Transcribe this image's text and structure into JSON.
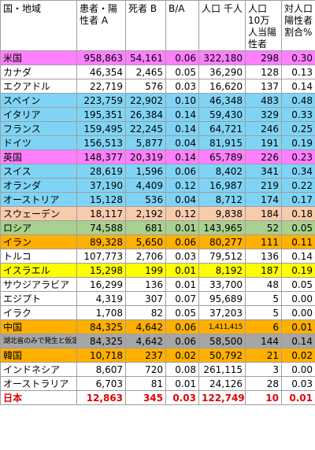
{
  "headers": [
    "国・地域",
    "患者・陽性者 A",
    "死者 B",
    "B/A",
    "人口 千人",
    "人口10万人当陽性者",
    "対人口陽性者割合%"
  ],
  "colors": {
    "magenta": "#ff80ff",
    "white": "#ffffff",
    "blue": "#7fd4f5",
    "peach": "#f9cbad",
    "green": "#a9d08e",
    "orange": "#ffb000",
    "yellow": "#ffff00",
    "gray": "#a6a6a6"
  },
  "rows": [
    {
      "name": "米国",
      "a": "958,863",
      "b": "54,161",
      "ba": "0.06",
      "pop": "322,180",
      "per100k": "298",
      "pct": "0.30",
      "bg": "#ff80ff"
    },
    {
      "name": "カナダ",
      "a": "46,354",
      "b": "2,465",
      "ba": "0.05",
      "pop": "36,290",
      "per100k": "128",
      "pct": "0.13",
      "bg": "#ffffff"
    },
    {
      "name": "エクアドル",
      "a": "22,719",
      "b": "576",
      "ba": "0.03",
      "pop": "16,620",
      "per100k": "137",
      "pct": "0.14",
      "bg": "#ffffff"
    },
    {
      "name": "スペイン",
      "a": "223,759",
      "b": "22,902",
      "ba": "0.10",
      "pop": "46,348",
      "per100k": "483",
      "pct": "0.48",
      "bg": "#7fd4f5"
    },
    {
      "name": "イタリア",
      "a": "195,351",
      "b": "26,384",
      "ba": "0.14",
      "pop": "59,430",
      "per100k": "329",
      "pct": "0.33",
      "bg": "#7fd4f5"
    },
    {
      "name": "フランス",
      "a": "159,495",
      "b": "22,245",
      "ba": "0.14",
      "pop": "64,721",
      "per100k": "246",
      "pct": "0.25",
      "bg": "#7fd4f5"
    },
    {
      "name": "ドイツ",
      "a": "156,513",
      "b": "5,877",
      "ba": "0.04",
      "pop": "81,915",
      "per100k": "191",
      "pct": "0.19",
      "bg": "#7fd4f5"
    },
    {
      "name": "英国",
      "a": "148,377",
      "b": "20,319",
      "ba": "0.14",
      "pop": "65,789",
      "per100k": "226",
      "pct": "0.23",
      "bg": "#ff80ff"
    },
    {
      "name": "スイス",
      "a": "28,619",
      "b": "1,596",
      "ba": "0.06",
      "pop": "8,402",
      "per100k": "341",
      "pct": "0.34",
      "bg": "#7fd4f5"
    },
    {
      "name": "オランダ",
      "a": "37,190",
      "b": "4,409",
      "ba": "0.12",
      "pop": "16,987",
      "per100k": "219",
      "pct": "0.22",
      "bg": "#7fd4f5"
    },
    {
      "name": "オーストリア",
      "a": "15,128",
      "b": "536",
      "ba": "0.04",
      "pop": "8,712",
      "per100k": "174",
      "pct": "0.17",
      "bg": "#7fd4f5"
    },
    {
      "name": "スウェーデン",
      "a": "18,117",
      "b": "2,192",
      "ba": "0.12",
      "pop": "9,838",
      "per100k": "184",
      "pct": "0.18",
      "bg": "#f9cbad"
    },
    {
      "name": "ロシア",
      "a": "74,588",
      "b": "681",
      "ba": "0.01",
      "pop": "143,965",
      "per100k": "52",
      "pct": "0.05",
      "bg": "#a9d08e"
    },
    {
      "name": "イラン",
      "a": "89,328",
      "b": "5,650",
      "ba": "0.06",
      "pop": "80,277",
      "per100k": "111",
      "pct": "0.11",
      "bg": "#ffb000"
    },
    {
      "name": "トルコ",
      "a": "107,773",
      "b": "2,706",
      "ba": "0.03",
      "pop": "79,512",
      "per100k": "136",
      "pct": "0.14",
      "bg": "#ffffff"
    },
    {
      "name": "イスラエル",
      "a": "15,298",
      "b": "199",
      "ba": "0.01",
      "pop": "8,192",
      "per100k": "187",
      "pct": "0.19",
      "bg": "#ffff00"
    },
    {
      "name": "サウジアラビア",
      "a": "16,299",
      "b": "136",
      "ba": "0.01",
      "pop": "33,700",
      "per100k": "48",
      "pct": "0.05",
      "bg": "#ffffff"
    },
    {
      "name": "エジプト",
      "a": "4,319",
      "b": "307",
      "ba": "0.07",
      "pop": "95,689",
      "per100k": "5",
      "pct": "0.00",
      "bg": "#ffffff"
    },
    {
      "name": "イラク",
      "a": "1,708",
      "b": "82",
      "ba": "0.05",
      "pop": "37,203",
      "per100k": "5",
      "pct": "0.00",
      "bg": "#ffffff"
    },
    {
      "name": "中国",
      "a": "84,325",
      "b": "4,642",
      "ba": "0.06",
      "pop": "1,411,415",
      "per100k": "6",
      "pct": "0.01",
      "bg": "#ffb000",
      "smallpop": true
    },
    {
      "name": "湖北省のみで発生と仮定",
      "a": "84,325",
      "b": "4,642",
      "ba": "0.06",
      "pop": "58,500",
      "per100k": "144",
      "pct": "0.14",
      "bg": "#a6a6a6",
      "smallname": true
    },
    {
      "name": "韓国",
      "a": "10,718",
      "b": "237",
      "ba": "0.02",
      "pop": "50,792",
      "per100k": "21",
      "pct": "0.02",
      "bg": "#ffb000"
    },
    {
      "name": "インドネシア",
      "a": "8,607",
      "b": "720",
      "ba": "0.08",
      "pop": "261,115",
      "per100k": "3",
      "pct": "0.00",
      "bg": "#ffffff"
    },
    {
      "name": "オーストラリア",
      "a": "6,703",
      "b": "81",
      "ba": "0.01",
      "pop": "24,126",
      "per100k": "28",
      "pct": "0.03",
      "bg": "#ffffff"
    },
    {
      "name": "日本",
      "a": "12,863",
      "b": "345",
      "ba": "0.03",
      "pop": "122,749",
      "per100k": "10",
      "pct": "0.01",
      "bg": "#ffffff",
      "bold": true
    }
  ]
}
